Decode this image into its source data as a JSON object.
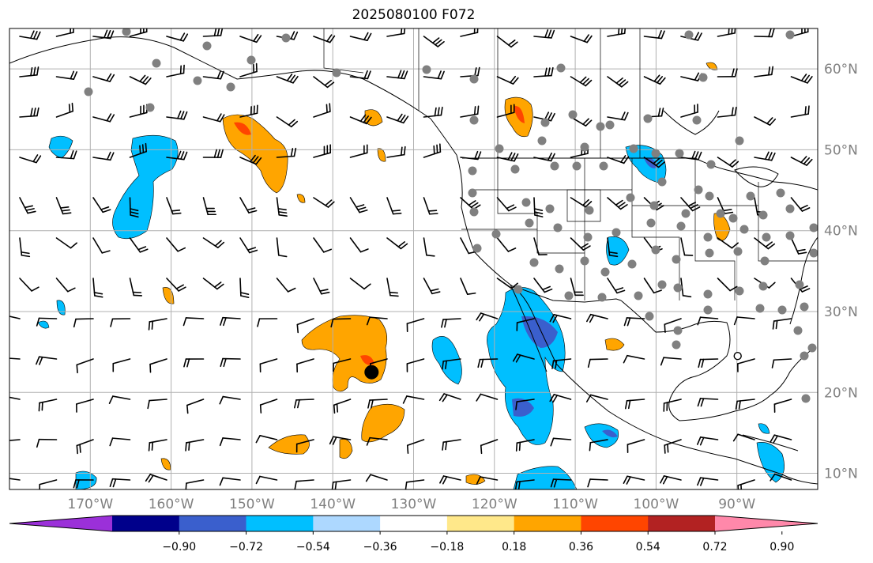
{
  "title": "2025080100 F072",
  "map": {
    "lon_range": [
      -180,
      -80
    ],
    "lat_range": [
      8,
      65
    ],
    "lon_ticks": [
      {
        "value": -170,
        "label": "170°W"
      },
      {
        "value": -160,
        "label": "160°W"
      },
      {
        "value": -150,
        "label": "150°W"
      },
      {
        "value": -140,
        "label": "140°W"
      },
      {
        "value": -130,
        "label": "130°W"
      },
      {
        "value": -120,
        "label": "120°W"
      },
      {
        "value": -110,
        "label": "110°W"
      },
      {
        "value": -100,
        "label": "100°W"
      },
      {
        "value": -90,
        "label": "90°W"
      }
    ],
    "lat_ticks": [
      {
        "value": 10,
        "label": "10°N"
      },
      {
        "value": 20,
        "label": "20°N"
      },
      {
        "value": 30,
        "label": "30°N"
      },
      {
        "value": 40,
        "label": "40°N"
      },
      {
        "value": 50,
        "label": "50°N"
      },
      {
        "value": 60,
        "label": "60°N"
      }
    ],
    "tick_label_color": "#808080",
    "grid_color": "#b0b0b0",
    "marker": {
      "lon": -135.2,
      "lat": 22.5
    },
    "open_marker": {
      "lon": -89.9,
      "lat": 24.5
    }
  },
  "colorbar": {
    "colors": [
      "#9b30d9",
      "#00008b",
      "#3a5fcd",
      "#00bfff",
      "#add8ff",
      "#ffffff",
      "#ffe88a",
      "#ffa500",
      "#ff4500",
      "#b22222",
      "#ff88aa"
    ],
    "ticks": [
      {
        "value": -0.9,
        "label": "−0.90"
      },
      {
        "value": -0.72,
        "label": "−0.72"
      },
      {
        "value": -0.54,
        "label": "−0.54"
      },
      {
        "value": -0.36,
        "label": "−0.36"
      },
      {
        "value": -0.18,
        "label": "−0.18"
      },
      {
        "value": 0.18,
        "label": "0.18"
      },
      {
        "value": 0.36,
        "label": "0.36"
      },
      {
        "value": 0.54,
        "label": "0.54"
      },
      {
        "value": 0.72,
        "label": "0.72"
      },
      {
        "value": 0.9,
        "label": "0.90"
      }
    ]
  }
}
